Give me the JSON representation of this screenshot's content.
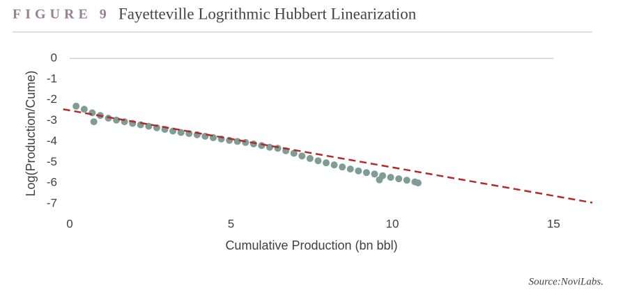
{
  "chart_data": {
    "type": "scatter",
    "figure_label": "FIGURE 9",
    "title": "Fayetteville Logrithmic Hubbert Linearization",
    "x_label": "Cumulative Production (bn bbl)",
    "y_label": "Log(Production/Cume)",
    "source": "Source:NoviLabs.",
    "xlim": [
      -0.2,
      16.2
    ],
    "xticks": [
      0,
      5,
      10,
      15
    ],
    "ylim": [
      -7,
      0
    ],
    "yticks": [
      0,
      -1,
      -2,
      -3,
      -4,
      -5,
      -6,
      -7
    ],
    "series": [
      {
        "type": "scatter",
        "color": "#7f9c95",
        "x": [
          0.2,
          0.45,
          0.7,
          0.95,
          1.2,
          1.45,
          1.7,
          1.95,
          2.2,
          2.45,
          2.7,
          2.95,
          3.2,
          3.45,
          3.7,
          3.95,
          4.2,
          4.45,
          4.7,
          4.95,
          5.2,
          5.45,
          5.7,
          5.95,
          6.2,
          6.45,
          6.7,
          6.95,
          7.2,
          7.45,
          7.7,
          7.95,
          8.2,
          8.45,
          8.7,
          8.95,
          9.2,
          9.45,
          9.7,
          9.95,
          10.2,
          10.45,
          10.7,
          10.8,
          0.75,
          9.6
        ],
        "values": [
          -2.3,
          -2.45,
          -2.62,
          -2.75,
          -2.88,
          -2.97,
          -3.05,
          -3.13,
          -3.2,
          -3.27,
          -3.34,
          -3.42,
          -3.5,
          -3.57,
          -3.62,
          -3.68,
          -3.75,
          -3.82,
          -3.88,
          -3.95,
          -4.0,
          -4.05,
          -4.12,
          -4.2,
          -4.28,
          -4.33,
          -4.45,
          -4.57,
          -4.7,
          -4.82,
          -4.93,
          -5.03,
          -5.13,
          -5.23,
          -5.33,
          -5.42,
          -5.5,
          -5.57,
          -5.65,
          -5.73,
          -5.8,
          -5.87,
          -5.95,
          -6.0,
          -3.05,
          -5.85
        ]
      },
      {
        "type": "line",
        "color": "#b22a2a",
        "dashed": true,
        "x": [
          -0.2,
          16.2
        ],
        "values": [
          -2.45,
          -6.95
        ]
      }
    ]
  }
}
